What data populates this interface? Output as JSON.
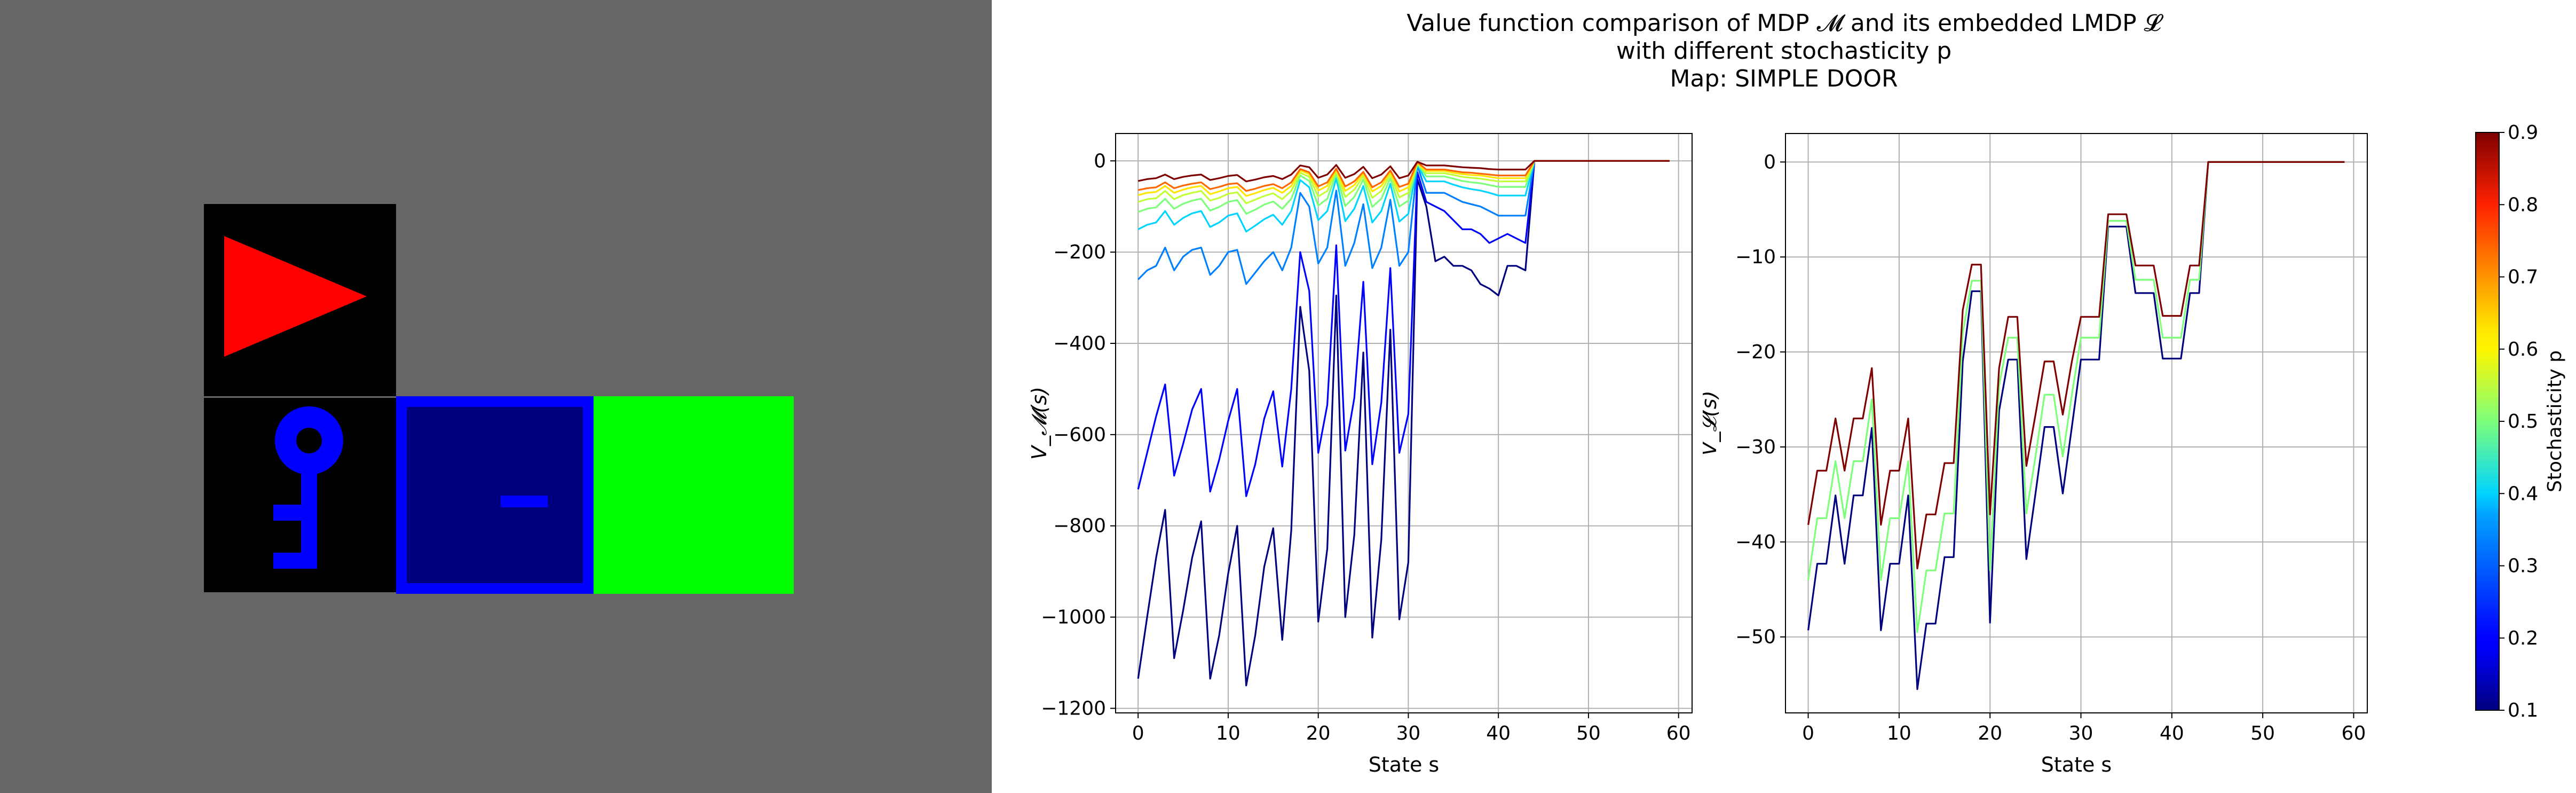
{
  "figure": {
    "title_lines": [
      "Value function comparison of MDP 𝓜 and its embedded LMDP 𝓛",
      "with different stochasticity p",
      "Map: SIMPLE DOOR"
    ]
  },
  "gridworld": {
    "background": "#666666",
    "cells": [
      {
        "kind": "agent",
        "bg": "#000000",
        "color": "#ff0000",
        "icon": "red-triangle-agent-icon"
      },
      {
        "kind": "key",
        "bg": "#000000",
        "color": "#0000ff",
        "icon": "blue-key-icon"
      },
      {
        "kind": "door",
        "bg": "#00007f",
        "color": "#0000ff",
        "icon": "locked-door-icon"
      },
      {
        "kind": "goal",
        "bg": "#00ff00",
        "icon": "goal-tile"
      }
    ]
  },
  "chart_data": [
    {
      "type": "line",
      "ylabel": "V_𝓜(s)",
      "xlabel": "State s",
      "xlim": [
        -2.5,
        61.5
      ],
      "ylim": [
        -1210,
        60
      ],
      "xticks": [
        0,
        10,
        20,
        30,
        40,
        50,
        60
      ],
      "yticks": [
        0,
        -200,
        -400,
        -600,
        -800,
        -1000,
        -1200
      ],
      "ytick_labels": [
        "0",
        "−200",
        "−400",
        "−600",
        "−800",
        "−1000",
        "−1200"
      ],
      "grid": true,
      "series": [
        {
          "p": 0.1,
          "color": "#00007f",
          "values": [
            -1135,
            -1000,
            -870,
            -765,
            -1090,
            -985,
            -870,
            -790,
            -1135,
            -1040,
            -905,
            -800,
            -1150,
            -1040,
            -890,
            -805,
            -1050,
            -810,
            -320,
            -460,
            -1010,
            -850,
            -295,
            -1000,
            -820,
            -420,
            -1045,
            -830,
            -370,
            -1005,
            -880,
            -40,
            -100,
            -220,
            -210,
            -230,
            -230,
            -240,
            -270,
            -280,
            -295,
            -230,
            -230,
            -240,
            0,
            0,
            0,
            0,
            0,
            0,
            0,
            0,
            0,
            0,
            0,
            0,
            0,
            0,
            0,
            0
          ]
        },
        {
          "p": 0.2,
          "color": "#0000ff",
          "values": [
            -720,
            -640,
            -560,
            -490,
            -690,
            -620,
            -545,
            -500,
            -725,
            -655,
            -570,
            -500,
            -735,
            -665,
            -565,
            -505,
            -670,
            -500,
            -200,
            -285,
            -640,
            -535,
            -185,
            -635,
            -520,
            -265,
            -665,
            -530,
            -235,
            -640,
            -555,
            -25,
            -90,
            -100,
            -110,
            -130,
            -150,
            -150,
            -160,
            -180,
            -170,
            -160,
            -170,
            -180,
            0,
            0,
            0,
            0,
            0,
            0,
            0,
            0,
            0,
            0,
            0,
            0,
            0,
            0,
            0,
            0
          ]
        },
        {
          "p": 0.3,
          "color": "#0080ff",
          "values": [
            -260,
            -240,
            -230,
            -190,
            -240,
            -210,
            -195,
            -190,
            -250,
            -230,
            -200,
            -195,
            -270,
            -245,
            -220,
            -200,
            -240,
            -190,
            -70,
            -100,
            -225,
            -190,
            -65,
            -230,
            -180,
            -95,
            -235,
            -190,
            -85,
            -230,
            -200,
            -10,
            -70,
            -70,
            -70,
            -80,
            -90,
            -95,
            -100,
            -110,
            -120,
            -120,
            -120,
            -120,
            0,
            0,
            0,
            0,
            0,
            0,
            0,
            0,
            0,
            0,
            0,
            0,
            0,
            0,
            0,
            0
          ]
        },
        {
          "p": 0.4,
          "color": "#00d4ff",
          "values": [
            -150,
            -140,
            -135,
            -110,
            -140,
            -125,
            -115,
            -110,
            -145,
            -135,
            -120,
            -115,
            -155,
            -142,
            -128,
            -118,
            -140,
            -110,
            -42,
            -58,
            -130,
            -110,
            -38,
            -132,
            -105,
            -55,
            -135,
            -110,
            -50,
            -133,
            -116,
            -8,
            -45,
            -45,
            -45,
            -52,
            -58,
            -62,
            -65,
            -70,
            -76,
            -76,
            -76,
            -76,
            0,
            0,
            0,
            0,
            0,
            0,
            0,
            0,
            0,
            0,
            0,
            0,
            0,
            0,
            0,
            0
          ]
        },
        {
          "p": 0.5,
          "color": "#7dff7a",
          "values": [
            -112,
            -105,
            -102,
            -83,
            -105,
            -94,
            -87,
            -83,
            -109,
            -101,
            -90,
            -86,
            -116,
            -107,
            -96,
            -89,
            -105,
            -83,
            -32,
            -44,
            -98,
            -83,
            -29,
            -99,
            -79,
            -41,
            -101,
            -83,
            -38,
            -100,
            -87,
            -6,
            -34,
            -34,
            -34,
            -39,
            -44,
            -47,
            -49,
            -53,
            -57,
            -57,
            -57,
            -57,
            0,
            0,
            0,
            0,
            0,
            0,
            0,
            0,
            0,
            0,
            0,
            0,
            0,
            0,
            0,
            0
          ]
        },
        {
          "p": 0.6,
          "color": "#c1ff36",
          "values": [
            -90,
            -84,
            -82,
            -66,
            -84,
            -75,
            -70,
            -66,
            -87,
            -81,
            -72,
            -69,
            -93,
            -85,
            -77,
            -71,
            -84,
            -66,
            -26,
            -35,
            -78,
            -66,
            -23,
            -79,
            -63,
            -33,
            -81,
            -66,
            -30,
            -80,
            -70,
            -5,
            -27,
            -27,
            -27,
            -31,
            -35,
            -37,
            -39,
            -42,
            -45,
            -45,
            -45,
            -45,
            0,
            0,
            0,
            0,
            0,
            0,
            0,
            0,
            0,
            0,
            0,
            0,
            0,
            0,
            0,
            0
          ]
        },
        {
          "p": 0.7,
          "color": "#ffe600",
          "values": [
            -75,
            -70,
            -68,
            -55,
            -70,
            -63,
            -58,
            -55,
            -73,
            -67,
            -60,
            -57,
            -77,
            -71,
            -64,
            -59,
            -70,
            -55,
            -21,
            -29,
            -65,
            -55,
            -19,
            -66,
            -53,
            -27,
            -67,
            -55,
            -25,
            -67,
            -58,
            -4,
            -22,
            -22,
            -22,
            -26,
            -29,
            -31,
            -32,
            -35,
            -38,
            -38,
            -38,
            -38,
            0,
            0,
            0,
            0,
            0,
            0,
            0,
            0,
            0,
            0,
            0,
            0,
            0,
            0,
            0,
            0
          ]
        },
        {
          "p": 0.8,
          "color": "#ff6800",
          "values": [
            -64,
            -60,
            -58,
            -47,
            -60,
            -54,
            -50,
            -47,
            -62,
            -57,
            -51,
            -49,
            -66,
            -61,
            -55,
            -51,
            -60,
            -47,
            -18,
            -25,
            -56,
            -47,
            -17,
            -56,
            -45,
            -24,
            -58,
            -47,
            -21,
            -57,
            -50,
            -3,
            -19,
            -19,
            -19,
            -22,
            -25,
            -26,
            -28,
            -30,
            -32,
            -32,
            -32,
            -32,
            0,
            0,
            0,
            0,
            0,
            0,
            0,
            0,
            0,
            0,
            0,
            0,
            0,
            0,
            0,
            0
          ]
        },
        {
          "p": 0.9,
          "color": "#7f0000",
          "values": [
            -44,
            -40,
            -38,
            -30,
            -40,
            -35,
            -32,
            -30,
            -42,
            -38,
            -33,
            -31,
            -45,
            -41,
            -36,
            -33,
            -40,
            -30,
            -10,
            -14,
            -37,
            -30,
            -9,
            -37,
            -29,
            -13,
            -38,
            -30,
            -12,
            -38,
            -32,
            -2,
            -10,
            -10,
            -10,
            -12,
            -14,
            -15,
            -16,
            -18,
            -19,
            -19,
            -19,
            -19,
            0,
            0,
            0,
            0,
            0,
            0,
            0,
            0,
            0,
            0,
            0,
            0,
            0,
            0,
            0,
            0
          ]
        }
      ]
    },
    {
      "type": "line",
      "ylabel": "V_𝓛(s)",
      "xlabel": "State s",
      "xlim": [
        -2.5,
        61.5
      ],
      "ylim": [
        -58,
        3
      ],
      "xticks": [
        0,
        10,
        20,
        30,
        40,
        50,
        60
      ],
      "yticks": [
        0,
        -10,
        -20,
        -30,
        -40,
        -50
      ],
      "ytick_labels": [
        "0",
        "−10",
        "−20",
        "−30",
        "−40",
        "−50"
      ],
      "grid": true,
      "series": [
        {
          "p": 0.1,
          "color": "#00007f",
          "values": [
            -49.3,
            -42.3,
            -42.3,
            -35.1,
            -42.3,
            -35.1,
            -35.1,
            -28.0,
            -49.3,
            -42.3,
            -42.3,
            -35.1,
            -55.5,
            -48.6,
            -48.6,
            -41.6,
            -41.6,
            -21.0,
            -13.6,
            -13.6,
            -48.5,
            -26.2,
            -20.8,
            -20.8,
            -41.8,
            -34.9,
            -27.9,
            -27.9,
            -34.9,
            -27.9,
            -20.8,
            -20.8,
            -20.8,
            -6.8,
            -6.8,
            -6.8,
            -13.8,
            -13.8,
            -13.8,
            -20.7,
            -20.7,
            -20.7,
            -13.8,
            -13.8,
            0,
            0,
            0,
            0,
            0,
            0,
            0,
            0,
            0,
            0,
            0,
            0,
            0,
            0,
            0,
            0
          ]
        },
        {
          "p": 0.5,
          "color": "#7dff7a",
          "values": [
            -44.0,
            -37.5,
            -37.5,
            -31.5,
            -37.5,
            -31.5,
            -31.5,
            -25.0,
            -44.0,
            -37.5,
            -37.5,
            -31.5,
            -49.5,
            -43.0,
            -43.0,
            -37.0,
            -37.0,
            -18.0,
            -12.5,
            -12.5,
            -43.0,
            -23.5,
            -18.5,
            -18.5,
            -37.0,
            -31.0,
            -24.5,
            -24.5,
            -31.0,
            -24.5,
            -18.5,
            -18.5,
            -18.5,
            -6.2,
            -6.2,
            -6.2,
            -12.4,
            -12.4,
            -12.4,
            -18.5,
            -18.5,
            -18.5,
            -12.4,
            -12.4,
            0,
            0,
            0,
            0,
            0,
            0,
            0,
            0,
            0,
            0,
            0,
            0,
            0,
            0,
            0,
            0
          ]
        },
        {
          "p": 0.9,
          "color": "#7f0000",
          "values": [
            -38.2,
            -32.5,
            -32.5,
            -27.0,
            -32.5,
            -27.0,
            -27.0,
            -21.7,
            -38.2,
            -32.5,
            -32.5,
            -27.0,
            -42.8,
            -37.1,
            -37.1,
            -31.7,
            -31.7,
            -15.6,
            -10.8,
            -10.8,
            -37.1,
            -21.7,
            -16.3,
            -16.3,
            -32.0,
            -26.6,
            -21.0,
            -21.0,
            -26.6,
            -21.0,
            -16.3,
            -16.3,
            -16.3,
            -5.5,
            -5.5,
            -5.5,
            -10.9,
            -10.9,
            -10.9,
            -16.2,
            -16.2,
            -16.2,
            -10.9,
            -10.9,
            0,
            0,
            0,
            0,
            0,
            0,
            0,
            0,
            0,
            0,
            0,
            0,
            0,
            0,
            0,
            0
          ]
        }
      ]
    }
  ],
  "colorbar": {
    "label": "Stochasticity p",
    "ticks": [
      "0.1",
      "0.2",
      "0.3",
      "0.4",
      "0.5",
      "0.6",
      "0.7",
      "0.8",
      "0.9"
    ],
    "range": [
      0.1,
      0.9
    ],
    "colormap": "jet"
  }
}
